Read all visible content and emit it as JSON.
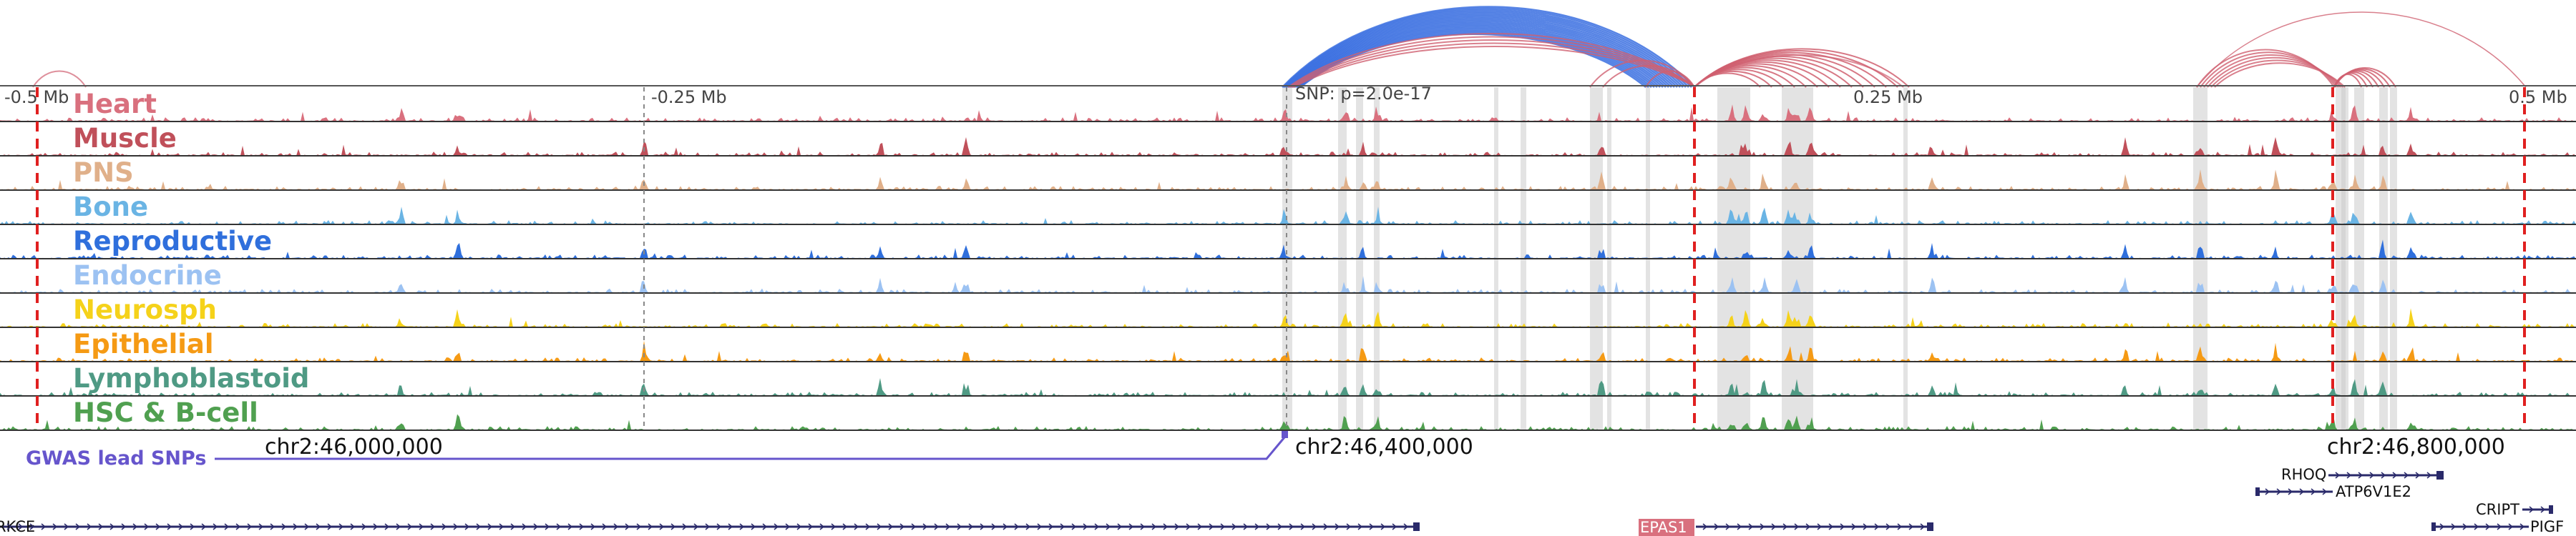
{
  "browser": {
    "top_ruler": [
      "-0.5 Mb",
      "-0.25 Mb",
      "SNP: p=2.0e-17",
      "0.25 Mb",
      "0.5 Mb"
    ],
    "bottom_ruler": [
      "chr2:46,000,000",
      "chr2:46,400,000",
      "chr2:46,800,000"
    ],
    "gwas_label": "GWAS lead SNPs",
    "tracks": [
      {
        "label": "Heart",
        "color": "#d9707e"
      },
      {
        "label": "Muscle",
        "color": "#c0505a"
      },
      {
        "label": "PNS",
        "color": "#e0b08a"
      },
      {
        "label": "Bone",
        "color": "#6ab4e4"
      },
      {
        "label": "Reproductive",
        "color": "#2f6fdc"
      },
      {
        "label": "Endocrine",
        "color": "#9cc2f2"
      },
      {
        "label": "Neurosph",
        "color": "#f5d21a"
      },
      {
        "label": "Epithelial",
        "color": "#f59a14"
      },
      {
        "label": "Lymphoblastoid",
        "color": "#4f9a84"
      },
      {
        "label": "HSC & B-cell",
        "color": "#50a050"
      }
    ],
    "genes": [
      {
        "name": "RKCE",
        "strand": "+"
      },
      {
        "name": "EPAS1",
        "strand": "+",
        "highlight": true
      },
      {
        "name": "RHOQ",
        "strand": "+"
      },
      {
        "name": "ATP6V1E2",
        "strand": "-"
      },
      {
        "name": "CRIPT",
        "strand": "+"
      },
      {
        "name": "PIGF",
        "strand": "-"
      }
    ],
    "colors": {
      "gwas": "#6655cc",
      "loop_pink": "#d06070",
      "loop_blue": "#3a6fe0",
      "marker_red": "#e02020",
      "highlight_band": "#cccccc",
      "gene": "#2a2a6a",
      "epas1_box": "#d9707e"
    }
  }
}
